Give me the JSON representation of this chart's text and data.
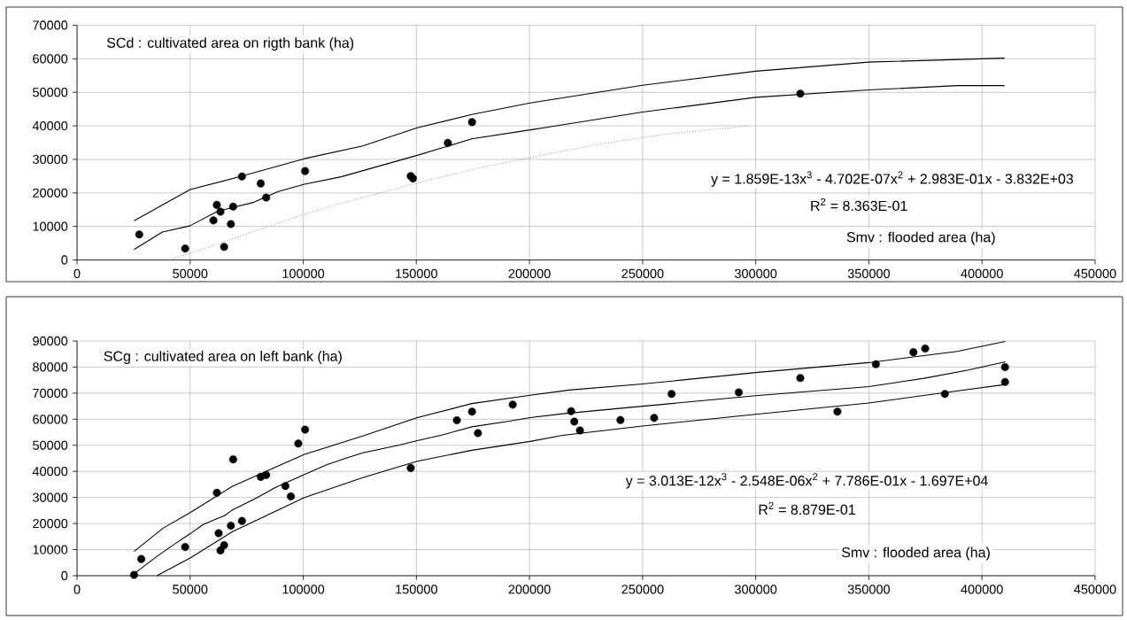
{
  "chart_data": [
    {
      "type": "scatter",
      "ylabel": "SCd : cultivated area on rigth bank  (ha)",
      "xlabel": "Smv : flooded area (ha)",
      "annotations": [
        "y = 1.859E-13x$^{3}$ - 4.702E-07x$^{2}$ + 2.983E-01x - 3.832E+03",
        "R$^{2}$ = 8.363E-01"
      ],
      "xlim": [
        0,
        450000
      ],
      "ylim": [
        0,
        70000
      ],
      "xticks": [
        0,
        50000,
        100000,
        150000,
        200000,
        250000,
        300000,
        350000,
        400000,
        450000
      ],
      "yticks": [
        0,
        10000,
        20000,
        30000,
        40000,
        50000,
        60000,
        70000
      ],
      "grid": true,
      "series": [
        {
          "color": "#000000",
          "marker": "circle",
          "x": [
            27500,
            47800,
            60300,
            61800,
            63400,
            65000,
            68000,
            69000,
            72900,
            81200,
            83600,
            100800,
            147500,
            148500,
            163900,
            174600,
            319700
          ],
          "values": [
            7600,
            3400,
            11800,
            16400,
            14400,
            3900,
            10700,
            15900,
            24900,
            22800,
            18600,
            26500,
            25000,
            24300,
            34900,
            41100,
            49600
          ]
        },
        {
          "type": "line",
          "color": "#000000",
          "marker": "none",
          "line_style": "solid",
          "x": [
            25200,
            37700,
            50000,
            62100,
            78200,
            88900,
            100500,
            116700,
            150400,
            174500,
            200300,
            208900,
            250000,
            300000,
            350000,
            389000,
            410000
          ],
          "values": [
            3100,
            8300,
            10200,
            14500,
            17200,
            20400,
            22600,
            24800,
            31200,
            36100,
            38800,
            39700,
            44100,
            48500,
            50700,
            52000,
            52000
          ]
        },
        {
          "type": "line",
          "color": "#000000",
          "marker": "none",
          "line_style": "solid",
          "x": [
            25200,
            50000,
            72900,
            100500,
            126300,
            150400,
            174500,
            200300,
            250000,
            300000,
            350000,
            400000,
            410000
          ],
          "values": [
            11700,
            21000,
            25000,
            30200,
            34000,
            39400,
            43400,
            46800,
            52100,
            56300,
            59000,
            60000,
            60200
          ]
        },
        {
          "type": "line",
          "color": "#a0a0a0",
          "marker": "none",
          "line_style": "dotted",
          "x": [
            41000,
            59200,
            70300,
            97800,
            107900,
            116200,
            126800,
            156300,
            179800,
            190700,
            202200,
            232000,
            257900,
            296900
          ],
          "values": [
            0,
            4000,
            6700,
            13100,
            15100,
            16800,
            18700,
            24000,
            27700,
            29200,
            30800,
            34700,
            37300,
            40000
          ]
        }
      ]
    },
    {
      "type": "scatter",
      "ylabel": "SCg : cultivated area on left bank  (ha)",
      "xlabel": "Smv : flooded area (ha)",
      "annotations": [
        "y = 3.013E-12x$^{3}$ - 2.548E-06x$^{2}$ + 7.786E-01x - 1.697E+04",
        "R$^{2}$ = 8.879E-01"
      ],
      "xlim": [
        0,
        450000
      ],
      "ylim": [
        0,
        90000
      ],
      "xticks": [
        0,
        50000,
        100000,
        150000,
        200000,
        250000,
        300000,
        350000,
        400000,
        450000
      ],
      "yticks": [
        0,
        10000,
        20000,
        30000,
        40000,
        50000,
        60000,
        70000,
        80000,
        90000
      ],
      "grid": true,
      "series": [
        {
          "color": "#000000",
          "marker": "circle",
          "x": [
            25200,
            28400,
            47800,
            61800,
            62600,
            63400,
            65000,
            68000,
            69000,
            72900,
            81200,
            83600,
            92100,
            94500,
            97800,
            100800,
            147500,
            167900,
            174600,
            177200,
            192600,
            218400,
            219800,
            222300,
            240200,
            255100,
            262800,
            292500,
            319700,
            336100,
            353100,
            369700,
            374900,
            383600,
            410200,
            410200
          ],
          "values": [
            300,
            6400,
            11000,
            31800,
            16300,
            9700,
            11700,
            19200,
            44600,
            21000,
            37900,
            38600,
            34400,
            30400,
            50700,
            56000,
            41300,
            59600,
            62900,
            54700,
            65600,
            63100,
            59100,
            55700,
            59700,
            60500,
            69700,
            70300,
            75800,
            62900,
            81100,
            85700,
            87100,
            69700,
            80000,
            74300
          ]
        },
        {
          "type": "line",
          "color": "#000000",
          "marker": "none",
          "line_style": "solid",
          "x": [
            25200,
            34800,
            42900,
            50000,
            55700,
            65300,
            68500,
            78200,
            87800,
            100500,
            110300,
            119900,
            126300,
            142400,
            150400,
            161600,
            174500,
            190500,
            200300,
            214700,
            250000,
            300000,
            350000,
            374400,
            394000,
            410300
          ],
          "values": [
            700,
            7100,
            12000,
            16100,
            19600,
            23100,
            25100,
            29300,
            33900,
            38800,
            42500,
            45300,
            47100,
            50100,
            51800,
            54000,
            57100,
            59200,
            60600,
            62100,
            65000,
            69000,
            72500,
            75700,
            78900,
            82000
          ]
        },
        {
          "type": "line",
          "color": "#000000",
          "marker": "none",
          "line_style": "solid",
          "x": [
            25200,
            38000,
            50000,
            68500,
            100500,
            126300,
            150400,
            174500,
            200300,
            217500,
            250000,
            300000,
            350000,
            389000,
            410300
          ],
          "values": [
            9300,
            18200,
            24200,
            34200,
            46500,
            53600,
            60600,
            66000,
            69200,
            71200,
            73500,
            77900,
            81700,
            86000,
            89800
          ]
        },
        {
          "type": "line",
          "color": "#000000",
          "marker": "none",
          "line_style": "solid",
          "x": [
            35300,
            50000,
            68500,
            100500,
            126300,
            150400,
            174500,
            200300,
            214700,
            250000,
            300000,
            350000,
            383600,
            410300
          ],
          "values": [
            0,
            6800,
            16800,
            30000,
            37600,
            43900,
            48100,
            51500,
            53800,
            57400,
            61900,
            66200,
            70200,
            73300
          ]
        }
      ]
    }
  ]
}
